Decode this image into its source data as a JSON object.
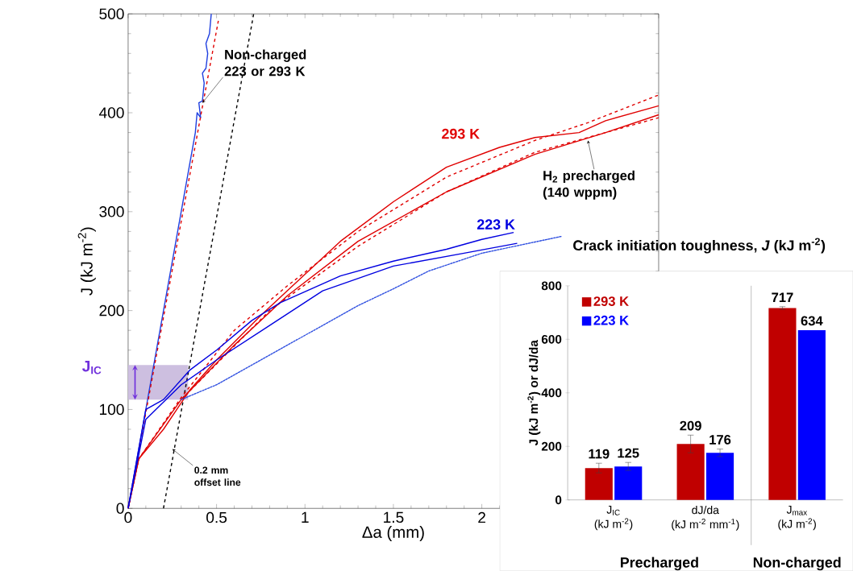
{
  "chart_data": [
    {
      "type": "line",
      "xlabel": "Δa (mm)",
      "ylabel": "J (kJ m$^{-2}$)",
      "xlim": [
        0,
        3
      ],
      "ylim": [
        0,
        500
      ],
      "xticks": [
        0,
        0.5,
        1,
        1.5,
        2,
        {
          "value": 2.5,
          "label": null
        },
        {
          "value": 3,
          "label": null
        }
      ],
      "yticks": [
        0,
        100,
        200,
        300,
        400,
        500
      ],
      "legend": false,
      "grid": false,
      "series": [
        {
          "color": "#1f3fe0",
          "line_style": "solid",
          "x": [
            0,
            0.2,
            0.38,
            0.39,
            0.41,
            0.4,
            0.42,
            0.43,
            0.42,
            0.44,
            0.45,
            0.44,
            0.46,
            0.47
          ],
          "values": [
            0,
            200,
            380,
            400,
            395,
            410,
            412,
            430,
            440,
            445,
            460,
            470,
            480,
            500
          ]
        },
        {
          "color": "#e00000",
          "line_style": "dashed",
          "x": [
            0,
            0.51
          ],
          "values": [
            0,
            493
          ]
        },
        {
          "color": "#000000",
          "line_style": "dashed",
          "x": [
            0.2,
            0.71
          ],
          "values": [
            0,
            500
          ]
        },
        {
          "name": "293 K",
          "color": "#e00000",
          "line_style": "solid",
          "x": [
            0,
            0.06,
            0.2,
            0.35,
            0.5,
            0.75,
            0.9,
            1.2,
            1.5,
            1.8,
            2.1,
            2.3,
            2.55,
            2.7,
            3
          ],
          "values": [
            0,
            50,
            80,
            120,
            150,
            195,
            220,
            270,
            310,
            345,
            365,
            375,
            380,
            392,
            407
          ]
        },
        {
          "color": "#e00000",
          "line_style": "solid",
          "x": [
            0,
            0.06,
            0.3,
            0.6,
            0.9,
            1.3,
            1.8,
            2.3,
            2.7,
            3
          ],
          "values": [
            0,
            50,
            110,
            165,
            215,
            270,
            320,
            358,
            380,
            398
          ]
        },
        {
          "color": "#e00000",
          "line_style": "dashed",
          "x": [
            0,
            0.06,
            0.3,
            0.6,
            0.9,
            1.3,
            1.8,
            2.3,
            2.6,
            3
          ],
          "values": [
            0,
            50,
            112,
            180,
            225,
            280,
            335,
            372,
            390,
            418
          ]
        },
        {
          "color": "#e00000",
          "line_style": "dashed",
          "x": [
            0.3,
            0.8,
            1.3,
            1.8,
            2.3,
            3
          ],
          "values": [
            110,
            200,
            265,
            320,
            360,
            395
          ]
        },
        {
          "name": "223 K",
          "color": "#0000e0",
          "line_style": "solid",
          "x": [
            0,
            0.1,
            0.2,
            0.35,
            0.5,
            0.7,
            0.86,
            1.2,
            1.5,
            1.8,
            2.0,
            2.18
          ],
          "values": [
            0,
            100,
            110,
            140,
            160,
            190,
            208,
            235,
            250,
            262,
            272,
            279
          ]
        },
        {
          "color": "#0000e0",
          "line_style": "solid",
          "x": [
            0,
            0.1,
            0.3,
            0.5,
            0.8,
            1.1,
            1.5,
            1.9,
            2.2
          ],
          "values": [
            0,
            90,
            125,
            150,
            185,
            220,
            245,
            258,
            268
          ]
        },
        {
          "color": "#3050e0",
          "line_style": "dotted",
          "x": [
            0.3,
            0.5,
            0.8,
            1.0,
            1.3,
            1.5,
            1.7,
            2.0,
            2.45
          ],
          "values": [
            110,
            125,
            155,
            175,
            205,
            222,
            240,
            258,
            275
          ]
        }
      ],
      "bands": [
        {
          "axis": "y",
          "from": 110,
          "to": 145,
          "label": "J$_{IC}$",
          "color": "#cdbfe0"
        }
      ],
      "annotations": [
        {
          "text": "Non-charged 223 or 293 K",
          "x": 0.42,
          "y": 410
        },
        {
          "text": "0.2 mm offset line",
          "x": 0.25,
          "y": 60
        },
        {
          "text": "H$_{2}$ precharged (140 wppm)",
          "x": 2.6,
          "y": 372
        }
      ]
    },
    {
      "type": "bar",
      "title": "Crack initiation toughness, *J* (kJ m$^{-2}$)",
      "ylabel": "J (kJ m$^{-2}$) or dJ/da",
      "categories": [
        "J$_{IC}$\n(kJ m$^{-2}$)",
        "dJ/da\n(kJ m$^{-2}$ mm$^{-1}$)",
        "J$_{max}$\n(kJ m$^{-2}$)"
      ],
      "ylim": [
        0,
        800
      ],
      "yticks": [
        0,
        200,
        400,
        600,
        800
      ],
      "legend": "top left",
      "data_labels": true,
      "series": [
        {
          "name": "293 K",
          "color": "#c00000",
          "values": [
            119,
            209,
            717
          ],
          "errors": [
            18,
            33,
            5
          ]
        },
        {
          "name": "223 K",
          "color": "#0000ff",
          "values": [
            125,
            176,
            634
          ],
          "errors": [
            15,
            14,
            null
          ]
        }
      ],
      "annotations": [
        "Precharged",
        "Non-charged"
      ]
    }
  ]
}
